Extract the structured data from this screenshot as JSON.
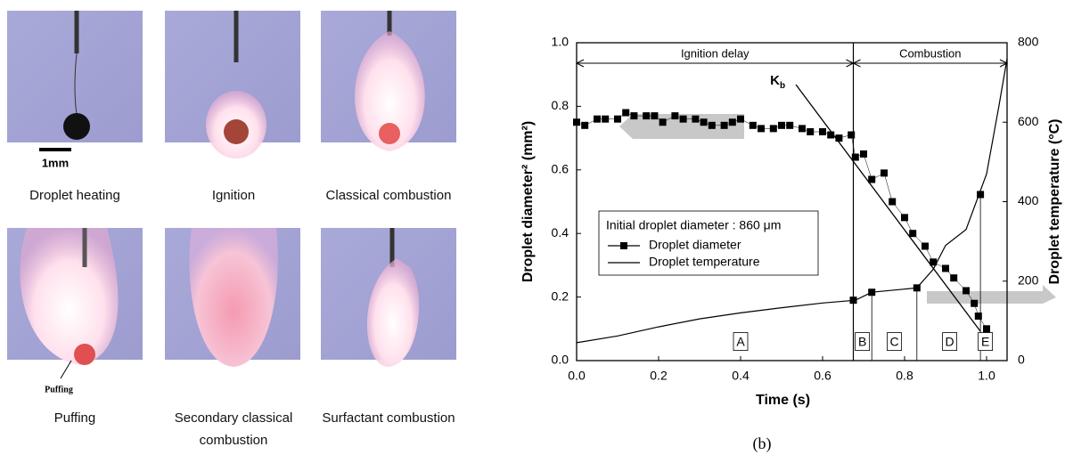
{
  "photos": {
    "captions": [
      "Droplet heating",
      "Ignition",
      "Classical combustion",
      "Puffing",
      "Secondary classical combustion",
      "Surfactant combustion"
    ],
    "scale_label": "1mm",
    "puffing_label": "Puffing"
  },
  "chart_data": {
    "type": "line",
    "figure_label": "(b)",
    "xlabel": "Time (s)",
    "ylabel": "Droplet diameter² (mm²)",
    "y2label": "Droplet temperature (°C)",
    "xlim": [
      0,
      1.05
    ],
    "ylim": [
      0,
      1
    ],
    "y2lim": [
      0,
      800
    ],
    "xticks": [
      {
        "value": 0,
        "label": "0.0"
      },
      0.2,
      0.4,
      0.6,
      0.8,
      {
        "value": 1,
        "label": "1.0"
      }
    ],
    "yticks": [
      {
        "value": 0,
        "label": "0.0"
      },
      0.2,
      0.4,
      0.6,
      0.8,
      {
        "value": 1,
        "label": "1.0"
      }
    ],
    "y2ticks": [
      0,
      200,
      400,
      600,
      800
    ],
    "legend_title": "Initial droplet diameter : 860 μm",
    "series": [
      {
        "name": "Droplet diameter",
        "color": "#000000",
        "marker": "square",
        "x": [
          0.0,
          0.02,
          0.05,
          0.07,
          0.1,
          0.12,
          0.14,
          0.17,
          0.19,
          0.21,
          0.24,
          0.26,
          0.29,
          0.31,
          0.33,
          0.36,
          0.38,
          0.4,
          0.43,
          0.45,
          0.48,
          0.5,
          0.52,
          0.55,
          0.57,
          0.6,
          0.62,
          0.64,
          0.67,
          0.68,
          0.7,
          0.72,
          0.75,
          0.77,
          0.8,
          0.82,
          0.85,
          0.87,
          0.9,
          0.92,
          0.95,
          0.97,
          0.98,
          1.0
        ],
        "values": [
          0.75,
          0.74,
          0.76,
          0.76,
          0.76,
          0.78,
          0.77,
          0.77,
          0.77,
          0.75,
          0.77,
          0.76,
          0.76,
          0.75,
          0.74,
          0.74,
          0.75,
          0.76,
          0.74,
          0.73,
          0.73,
          0.74,
          0.74,
          0.73,
          0.72,
          0.72,
          0.71,
          0.7,
          0.71,
          0.64,
          0.65,
          0.57,
          0.59,
          0.5,
          0.45,
          0.4,
          0.36,
          0.31,
          0.29,
          0.26,
          0.22,
          0.18,
          0.14,
          0.1
        ]
      },
      {
        "name": "Droplet temperature",
        "color": "#000000",
        "axis": "y2",
        "x": [
          0,
          0.1,
          0.2,
          0.3,
          0.4,
          0.5,
          0.6,
          0.68,
          0.72,
          0.8,
          0.83,
          0.87,
          0.9,
          0.95,
          1.0,
          1.03,
          1.05
        ],
        "values": [
          45,
          62,
          85,
          105,
          120,
          133,
          145,
          152,
          172,
          180,
          183,
          230,
          290,
          330,
          470,
          640,
          760
        ]
      },
      {
        "color": "#000000",
        "axis": "y2",
        "marker": "square",
        "x": [
          0.675,
          0.72,
          0.83,
          0.985
        ],
        "values": [
          152,
          172,
          183,
          418
        ]
      }
    ],
    "fit_line": {
      "x": [
        0.535,
        0.985
      ],
      "values": [
        0.868,
        0.092
      ],
      "label": {
        "text": "K",
        "subscript": "b"
      }
    },
    "spans": [
      {
        "label": "Ignition delay",
        "from": 0,
        "to": 0.675
      },
      {
        "label": "Combustion",
        "from": 0.675,
        "to": 1.05
      }
    ],
    "regions": [
      {
        "text": "A",
        "x": 0.4
      },
      {
        "text": "B",
        "x": 0.697
      },
      {
        "text": "C",
        "x": 0.775
      },
      {
        "text": "D",
        "x": 0.91
      },
      {
        "text": "E",
        "x": 0.997
      }
    ]
  }
}
